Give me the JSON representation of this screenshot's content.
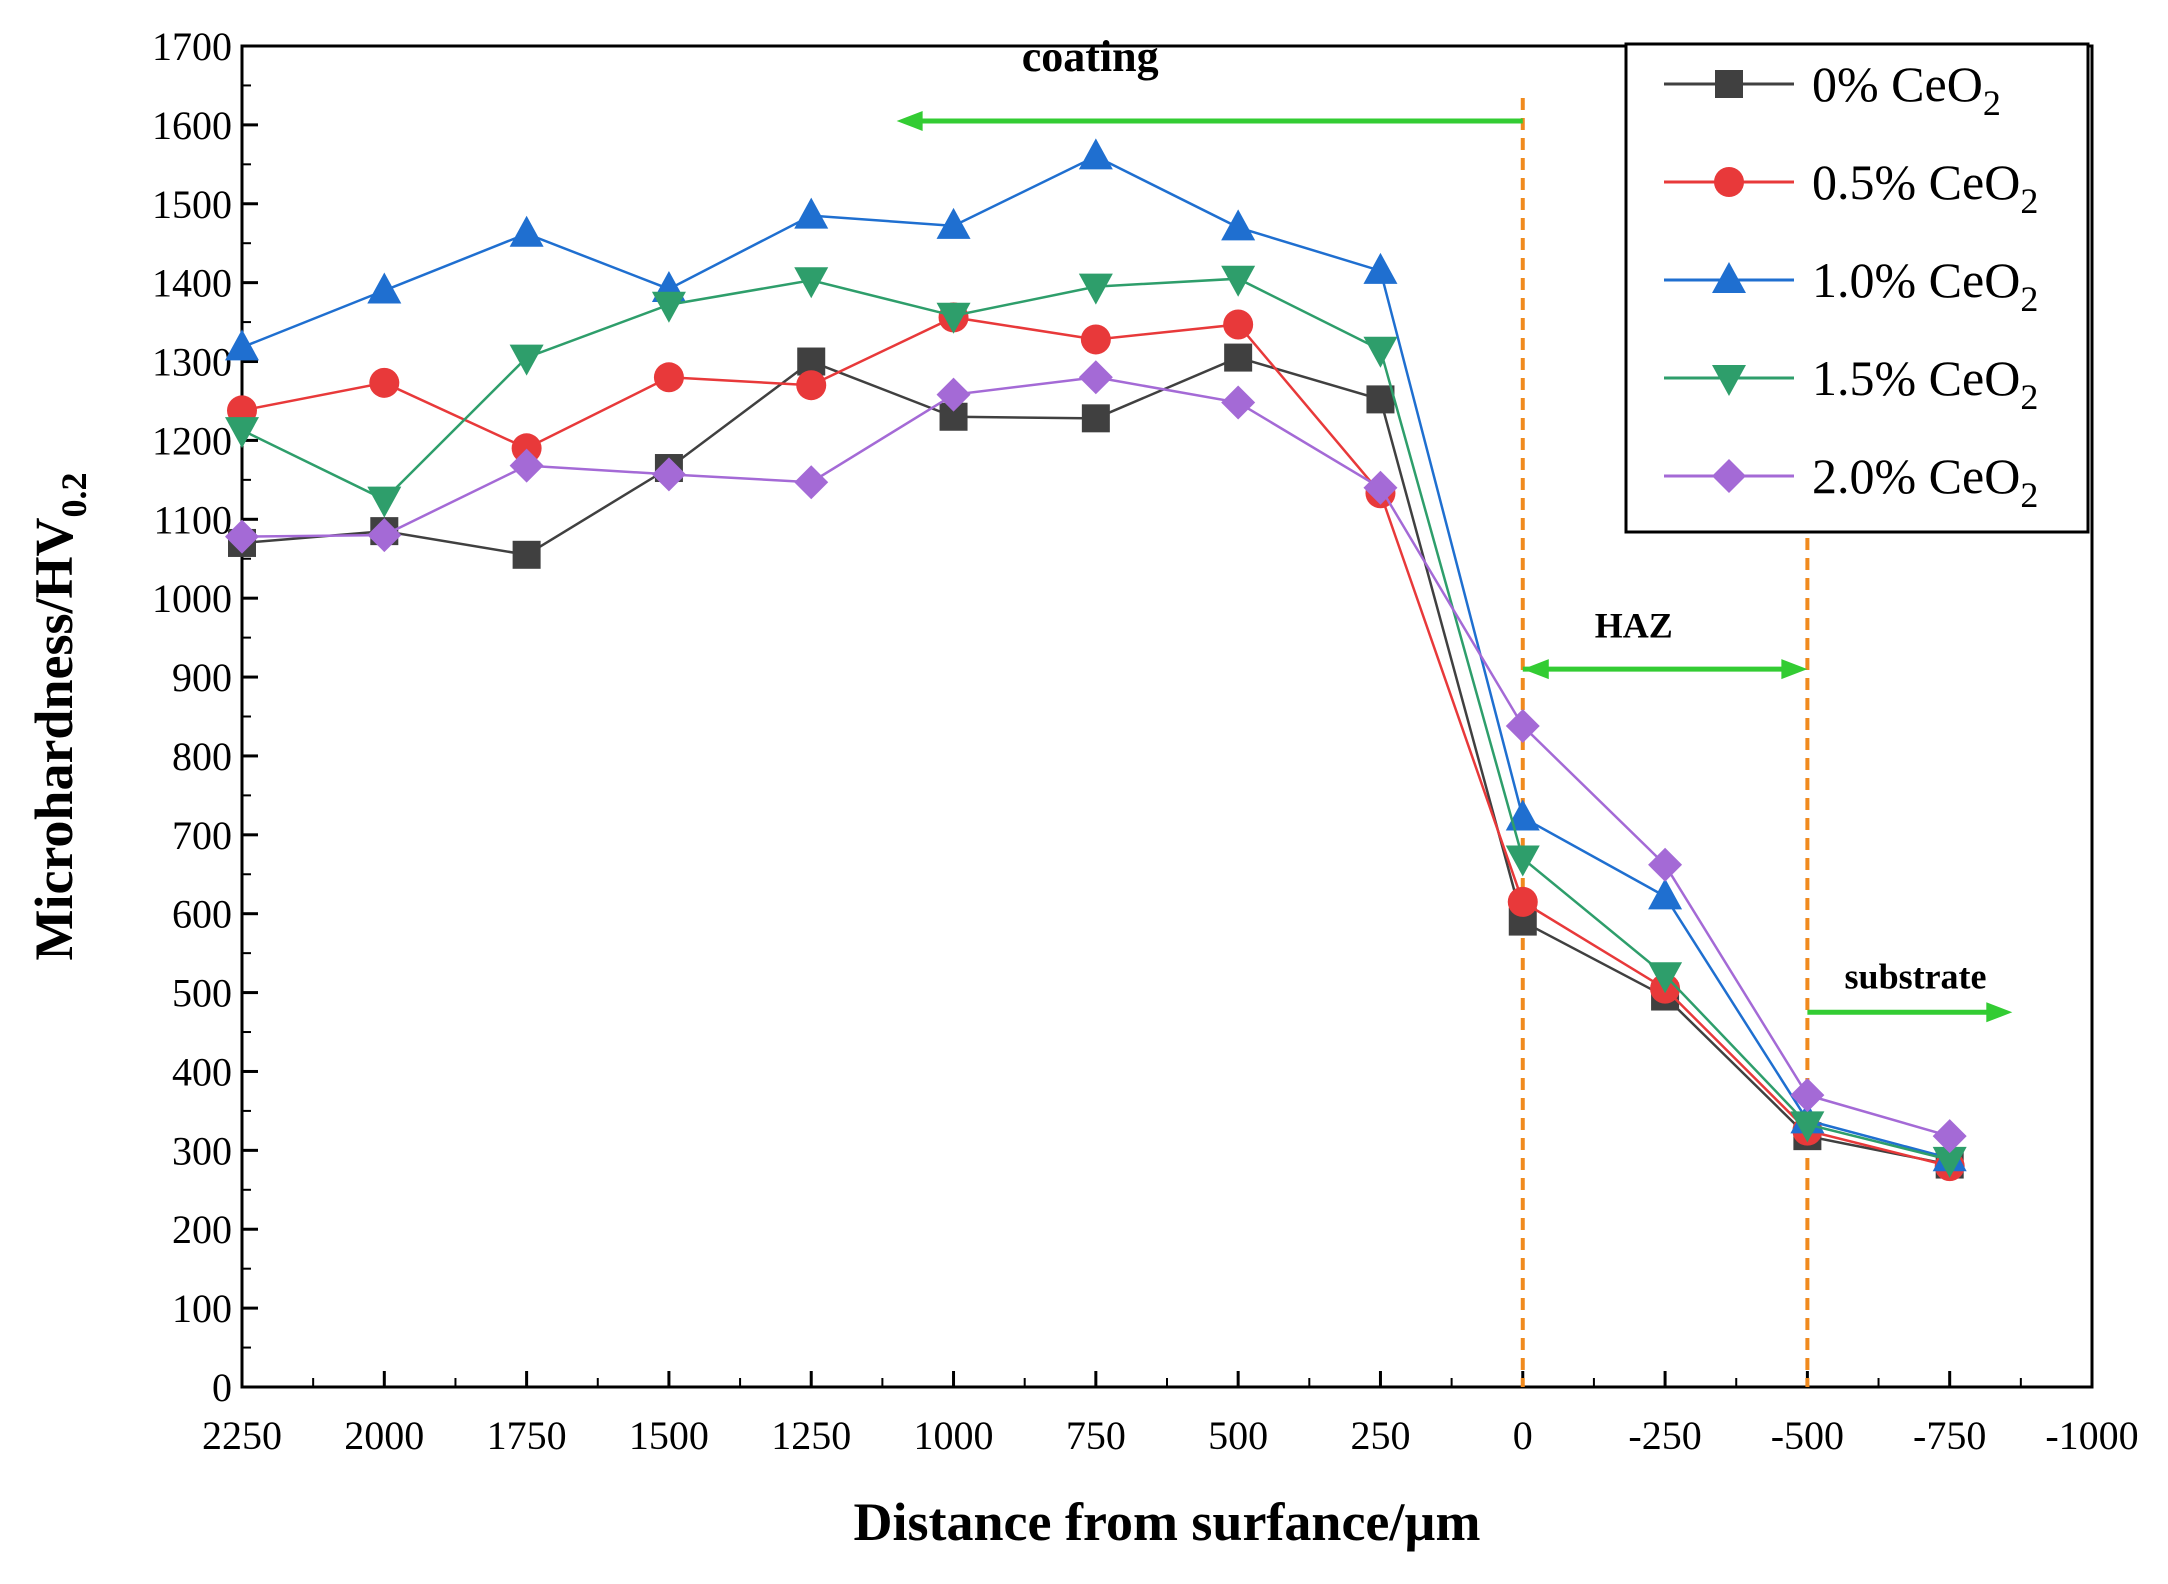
{
  "chart_data": {
    "type": "line",
    "title": "",
    "xlabel": "Distance from surfance/µm",
    "ylabel": {
      "main": "Microhardness/HV",
      "sub": "0.2"
    },
    "xlim": [
      2250,
      -1000
    ],
    "ylim": [
      0,
      1700
    ],
    "x_ticks": [
      2250,
      2000,
      1750,
      1500,
      1250,
      1000,
      750,
      500,
      250,
      0,
      -250,
      -500,
      -750,
      -1000
    ],
    "y_ticks": [
      0,
      100,
      200,
      300,
      400,
      500,
      600,
      700,
      800,
      900,
      1000,
      1100,
      1200,
      1300,
      1400,
      1500,
      1600,
      1700
    ],
    "x": [
      2250,
      2000,
      1750,
      1500,
      1250,
      1000,
      750,
      500,
      250,
      0,
      -250,
      -500,
      -750
    ],
    "series": [
      {
        "name": "0%   CeO",
        "sub": "2",
        "color": "#404040",
        "marker": "square",
        "values": [
          1070,
          1085,
          1055,
          1165,
          1300,
          1230,
          1228,
          1305,
          1252,
          590,
          495,
          318,
          282
        ]
      },
      {
        "name": "0.5% CeO",
        "sub": "2",
        "color": "#e8393a",
        "marker": "circle",
        "values": [
          1238,
          1273,
          1190,
          1280,
          1270,
          1356,
          1328,
          1347,
          1133,
          615,
          505,
          325,
          280
        ]
      },
      {
        "name": "1.0% CeO",
        "sub": "2",
        "color": "#1f6fd0",
        "marker": "triangle-up",
        "values": [
          1318,
          1390,
          1462,
          1392,
          1485,
          1472,
          1560,
          1470,
          1415,
          722,
          622,
          338,
          290
        ]
      },
      {
        "name": "1.5% CeO",
        "sub": "2",
        "color": "#2e9e6b",
        "marker": "triangle-down",
        "values": [
          1213,
          1125,
          1305,
          1372,
          1403,
          1358,
          1395,
          1405,
          1315,
          670,
          522,
          333,
          288
        ]
      },
      {
        "name": "2.0% CeO",
        "sub": "2",
        "color": "#a46ad6",
        "marker": "diamond",
        "values": [
          1078,
          1080,
          1168,
          1157,
          1147,
          1258,
          1280,
          1248,
          1140,
          838,
          662,
          370,
          318
        ]
      }
    ],
    "annotations": [
      {
        "text": "coating",
        "arrow_from": 0,
        "arrow_to": 1100,
        "arrow_y": 1605,
        "label_x": 760,
        "label_y": 1668
      },
      {
        "text": "HAZ",
        "arrow_from": 0,
        "arrow_to": -500,
        "arrow_y": 910,
        "label_x": -195,
        "label_y": 950
      },
      {
        "text": "substrate",
        "arrow_from": -500,
        "arrow_to": -860,
        "arrow_y": 475,
        "label_x": -690,
        "label_y": 505
      }
    ],
    "boundaries": [
      0,
      -500
    ],
    "arrow_color": "#33cc33",
    "boundary_color": "#f08a1e",
    "legend_position": "top-right"
  }
}
